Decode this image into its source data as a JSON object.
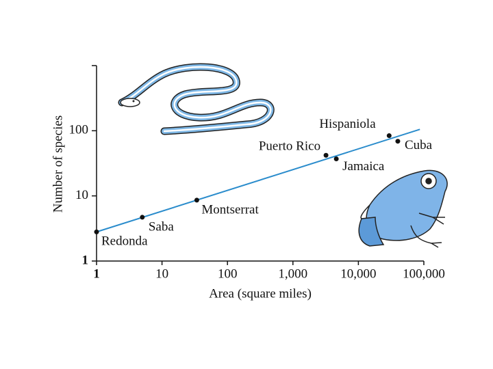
{
  "chart_data": {
    "type": "scatter",
    "x_label": "Area (square miles)",
    "y_label": "Number of species",
    "log_x": true,
    "log_y": true,
    "xlim": [
      1,
      100000
    ],
    "ylim": [
      1,
      1000
    ],
    "xticks": [
      1,
      10,
      100,
      {
        "value": 1000,
        "label": "1,000"
      },
      {
        "value": 10000,
        "label": "10,000"
      },
      {
        "value": 100000,
        "label": "100,000"
      }
    ],
    "yticks": [
      1,
      10,
      100
    ],
    "labels": [
      "Redonda",
      "Saba",
      "Montserrat",
      "Puerto Rico",
      "Jamaica",
      "Hispaniola",
      "Cuba"
    ],
    "x": [
      1,
      5,
      34,
      3200,
      4600,
      29500,
      40000
    ],
    "values": [
      2.8,
      4.7,
      8.6,
      42,
      37,
      84,
      69
    ],
    "color": "#111111",
    "trend": {
      "x": [
        1,
        87000
      ],
      "values": [
        2.8,
        105
      ],
      "color": "#2a8ccc"
    }
  }
}
